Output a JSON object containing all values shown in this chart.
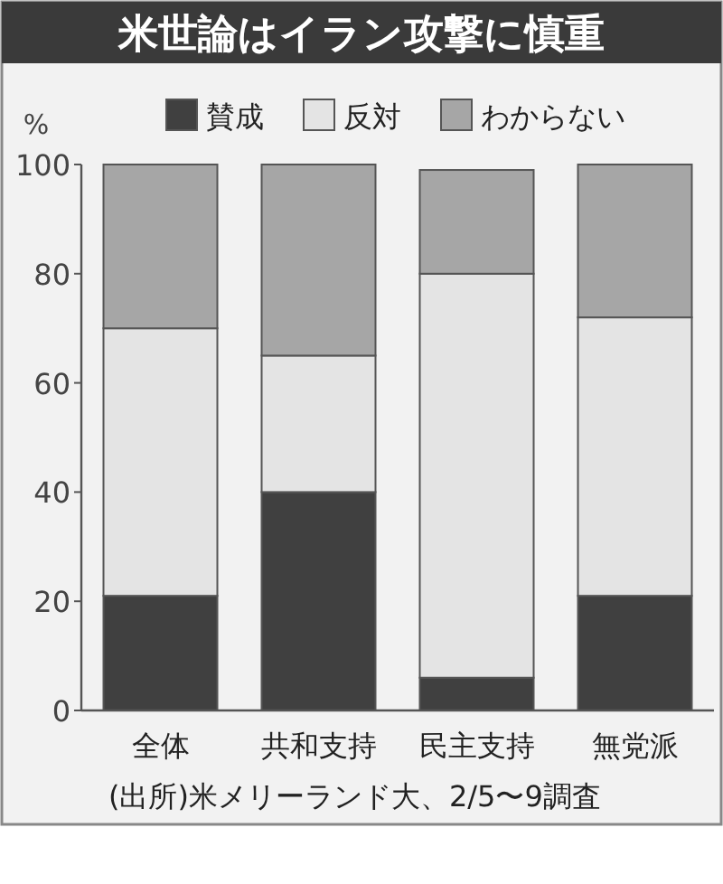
{
  "chart_data": {
    "type": "bar",
    "stacked": true,
    "title": "米世論はイラン攻撃に慎重",
    "ylabel": "%",
    "categories": [
      "全体",
      "共和支持",
      "民主支持",
      "無党派"
    ],
    "series": [
      {
        "name": "賛成",
        "color": "#404040",
        "values": [
          21,
          40,
          6,
          21
        ]
      },
      {
        "name": "反対",
        "color": "#e4e4e4",
        "values": [
          49,
          25,
          74,
          51
        ]
      },
      {
        "name": "わからない",
        "color": "#a6a6a6",
        "values": [
          30,
          35,
          19,
          28
        ]
      }
    ],
    "ylim": [
      0,
      100
    ],
    "yticks": [
      0,
      20,
      40,
      60,
      80,
      100
    ],
    "grid": false,
    "legend": "top",
    "annotations": [
      "(出所)米メリーランド大、2/5〜9調査"
    ]
  }
}
